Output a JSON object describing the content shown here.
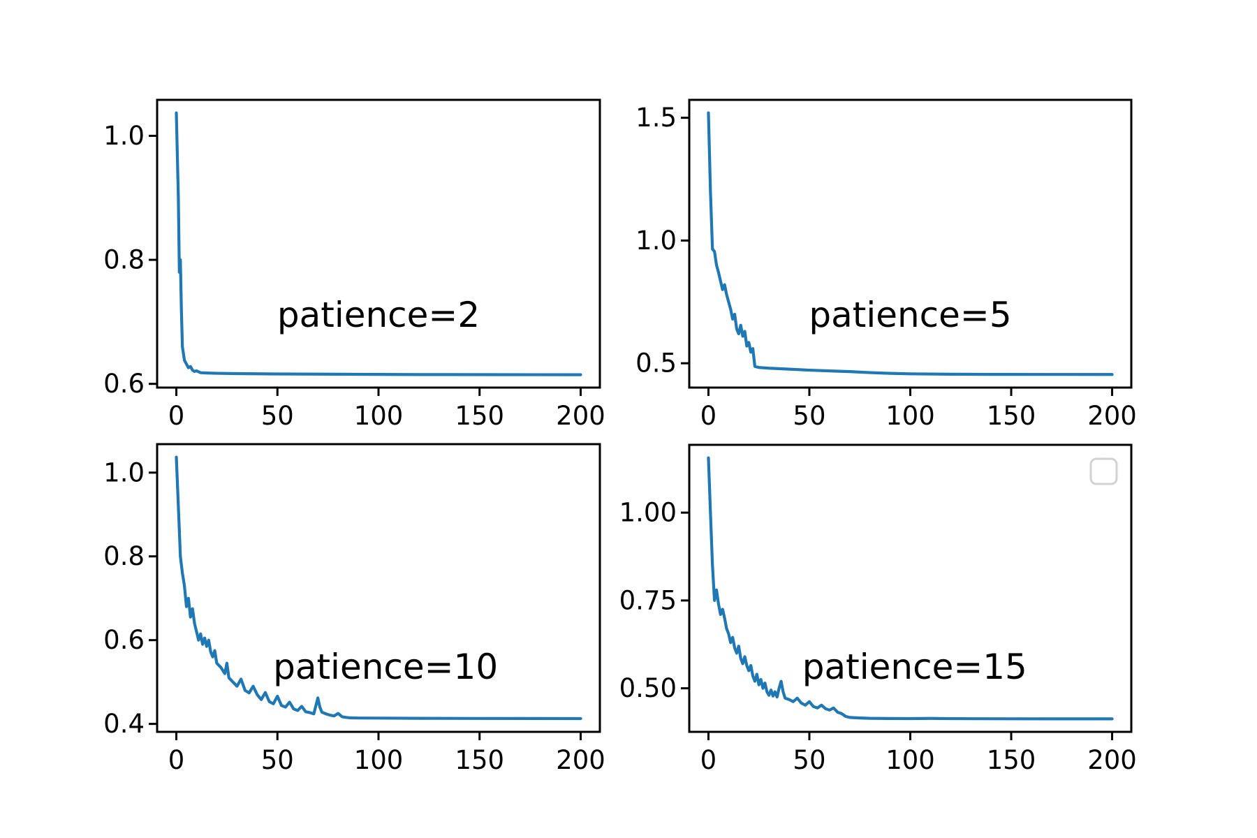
{
  "figure": {
    "background": "#ffffff",
    "axis_color": "#000000",
    "line_color": "#1f77b4",
    "legend_border_color": "#d2d2d2"
  },
  "chart_data": [
    {
      "type": "line",
      "annotation": "patience=2",
      "xlabel": "",
      "ylabel": "",
      "xlim": [
        -9.5,
        209.5
      ],
      "ylim": [
        0.594,
        1.058
      ],
      "x_ticks": [
        0,
        50,
        100,
        150,
        200
      ],
      "x_tick_labels": [
        "0",
        "50",
        "100",
        "150",
        "200"
      ],
      "y_ticks": [
        0.6,
        0.8,
        1.0
      ],
      "y_tick_labels": [
        "0.6",
        "0.8",
        "1.0"
      ],
      "grid": false,
      "legend_visible": false,
      "series": [
        {
          "x": [
            0,
            1,
            1.5,
            2,
            2.5,
            3,
            4,
            5,
            6,
            7,
            8,
            9,
            10,
            12,
            15,
            20,
            30,
            50,
            80,
            120,
            160,
            200
          ],
          "y": [
            1.037,
            0.9,
            0.78,
            0.8,
            0.72,
            0.66,
            0.638,
            0.632,
            0.626,
            0.628,
            0.622,
            0.62,
            0.621,
            0.618,
            0.6175,
            0.617,
            0.6165,
            0.616,
            0.6155,
            0.615,
            0.6148,
            0.6147
          ]
        }
      ]
    },
    {
      "type": "line",
      "annotation": "patience=5",
      "xlabel": "",
      "ylabel": "",
      "xlim": [
        -9.5,
        209.5
      ],
      "ylim": [
        0.401,
        1.573
      ],
      "x_ticks": [
        0,
        50,
        100,
        150,
        200
      ],
      "x_tick_labels": [
        "0",
        "50",
        "100",
        "150",
        "200"
      ],
      "y_ticks": [
        0.5,
        1.0,
        1.5
      ],
      "y_tick_labels": [
        "0.5",
        "1.0",
        "1.5"
      ],
      "grid": false,
      "legend_visible": false,
      "series": [
        {
          "x": [
            0,
            1,
            2,
            3,
            4,
            5,
            6,
            7,
            8,
            9,
            10,
            11,
            12,
            13,
            14,
            15,
            16,
            17,
            18,
            19,
            20,
            21,
            22,
            23,
            25,
            30,
            40,
            50,
            60,
            70,
            80,
            90,
            100,
            120,
            140,
            170,
            200
          ],
          "y": [
            1.52,
            1.2,
            0.965,
            0.955,
            0.9,
            0.87,
            0.835,
            0.8,
            0.82,
            0.78,
            0.75,
            0.72,
            0.68,
            0.7,
            0.64,
            0.62,
            0.655,
            0.61,
            0.63,
            0.57,
            0.585,
            0.545,
            0.56,
            0.487,
            0.483,
            0.48,
            0.476,
            0.472,
            0.469,
            0.466,
            0.462,
            0.459,
            0.457,
            0.4555,
            0.4548,
            0.4545,
            0.4543
          ]
        }
      ]
    },
    {
      "type": "line",
      "annotation": "patience=10",
      "xlabel": "",
      "ylabel": "",
      "xlim": [
        -9.5,
        209.5
      ],
      "ylim": [
        0.381,
        1.068
      ],
      "x_ticks": [
        0,
        50,
        100,
        150,
        200
      ],
      "x_tick_labels": [
        "0",
        "50",
        "100",
        "150",
        "200"
      ],
      "y_ticks": [
        0.4,
        0.6,
        0.8,
        1.0
      ],
      "y_tick_labels": [
        "0.4",
        "0.6",
        "0.8",
        "1.0"
      ],
      "grid": false,
      "legend_visible": false,
      "series": [
        {
          "x": [
            0,
            1,
            2,
            3,
            4,
            5,
            6,
            7,
            8,
            9,
            10,
            11,
            12,
            13,
            14,
            15,
            16,
            17,
            18,
            19,
            20,
            22,
            24,
            25,
            26,
            28,
            30,
            32,
            34,
            36,
            38,
            40,
            42,
            44,
            46,
            48,
            50,
            52,
            54,
            56,
            58,
            60,
            62,
            64,
            66,
            68,
            70,
            71,
            72,
            74,
            76,
            78,
            80,
            82,
            84,
            86,
            90,
            100,
            120,
            150,
            200
          ],
          "y": [
            1.037,
            0.92,
            0.8,
            0.76,
            0.73,
            0.68,
            0.7,
            0.655,
            0.675,
            0.64,
            0.62,
            0.6,
            0.615,
            0.59,
            0.605,
            0.585,
            0.6,
            0.572,
            0.56,
            0.575,
            0.545,
            0.535,
            0.52,
            0.545,
            0.51,
            0.5,
            0.49,
            0.507,
            0.48,
            0.474,
            0.49,
            0.47,
            0.458,
            0.475,
            0.453,
            0.448,
            0.466,
            0.444,
            0.44,
            0.452,
            0.436,
            0.432,
            0.442,
            0.429,
            0.427,
            0.424,
            0.462,
            0.44,
            0.428,
            0.424,
            0.421,
            0.419,
            0.425,
            0.417,
            0.4155,
            0.4145,
            0.414,
            0.4138,
            0.4133,
            0.413,
            0.4127
          ]
        }
      ]
    },
    {
      "type": "line",
      "annotation": "patience=15",
      "xlabel": "",
      "ylabel": "",
      "xlim": [
        -9.5,
        209.5
      ],
      "ylim": [
        0.376,
        1.193
      ],
      "x_ticks": [
        0,
        50,
        100,
        150,
        200
      ],
      "x_tick_labels": [
        "0",
        "50",
        "100",
        "150",
        "200"
      ],
      "y_ticks": [
        0.5,
        0.75,
        1.0
      ],
      "y_tick_labels": [
        "0.50",
        "0.75",
        "1.00"
      ],
      "grid": false,
      "legend_visible": true,
      "series": [
        {
          "x": [
            0,
            1,
            2,
            3,
            4,
            5,
            6,
            7,
            8,
            9,
            10,
            11,
            12,
            13,
            14,
            15,
            16,
            17,
            18,
            19,
            20,
            21,
            22,
            23,
            24,
            25,
            26,
            27,
            28,
            29,
            30,
            31,
            32,
            33,
            34,
            35,
            36,
            37,
            38,
            40,
            42,
            44,
            46,
            48,
            50,
            52,
            54,
            56,
            58,
            60,
            62,
            64,
            66,
            68,
            70,
            75,
            80,
            90,
            100,
            110,
            120,
            135,
            150,
            175,
            200
          ],
          "y": [
            1.156,
            1.0,
            0.85,
            0.75,
            0.78,
            0.74,
            0.71,
            0.725,
            0.7,
            0.67,
            0.655,
            0.63,
            0.645,
            0.615,
            0.6,
            0.62,
            0.585,
            0.57,
            0.59,
            0.565,
            0.55,
            0.565,
            0.535,
            0.52,
            0.54,
            0.51,
            0.525,
            0.5,
            0.515,
            0.49,
            0.48,
            0.495,
            0.478,
            0.49,
            0.475,
            0.5,
            0.52,
            0.49,
            0.472,
            0.468,
            0.462,
            0.472,
            0.458,
            0.452,
            0.462,
            0.448,
            0.444,
            0.452,
            0.442,
            0.438,
            0.444,
            0.432,
            0.428,
            0.42,
            0.417,
            0.4155,
            0.4145,
            0.414,
            0.4138,
            0.4142,
            0.4136,
            0.4134,
            0.4132,
            0.4131,
            0.413
          ]
        }
      ]
    }
  ]
}
